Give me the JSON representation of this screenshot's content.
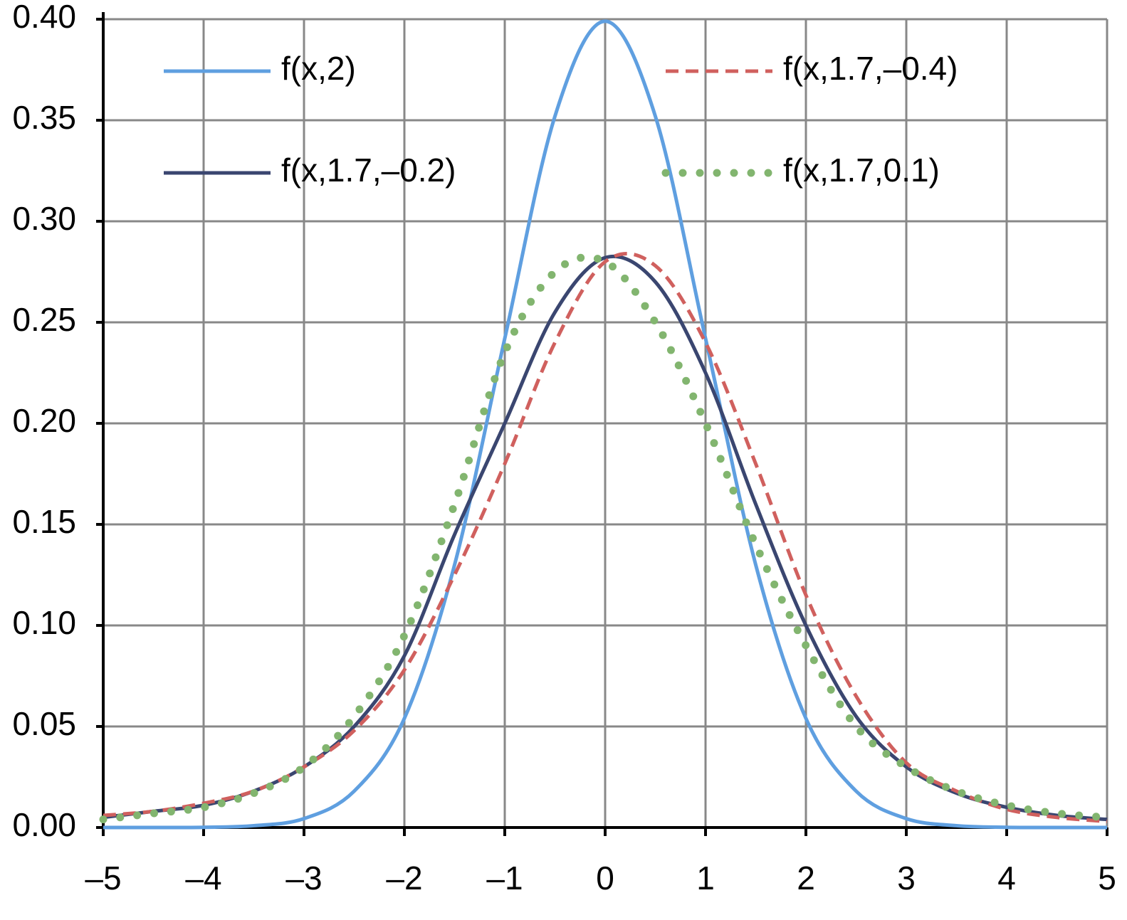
{
  "chart_data": {
    "type": "line",
    "x": [
      -5,
      -4.5,
      -4,
      -3.5,
      -3,
      -2.5,
      -2,
      -1.5,
      -1,
      -0.5,
      0,
      0.5,
      1,
      1.5,
      2,
      2.5,
      3,
      3.5,
      4,
      4.5,
      5
    ],
    "series": [
      {
        "name": "f(x,2)",
        "color": "#5f9fe0",
        "style": "solid",
        "values": [
          0,
          0,
          0.0001,
          0.0009,
          0.0044,
          0.018,
          0.054,
          0.13,
          0.242,
          0.352,
          0.399,
          0.352,
          0.242,
          0.13,
          0.054,
          0.018,
          0.0044,
          0.0009,
          0.0001,
          0,
          0
        ]
      },
      {
        "name": "f(x,1.7,–0.2)",
        "color": "#3a4670",
        "style": "solid",
        "values": [
          0.005,
          0.008,
          0.011,
          0.018,
          0.03,
          0.05,
          0.085,
          0.145,
          0.2,
          0.255,
          0.282,
          0.27,
          0.225,
          0.16,
          0.1,
          0.055,
          0.03,
          0.017,
          0.01,
          0.006,
          0.004
        ]
      },
      {
        "name": "f(x,1.7,–0.4)",
        "color": "#d0605e",
        "style": "dashed",
        "values": [
          0.006,
          0.008,
          0.012,
          0.018,
          0.03,
          0.048,
          0.078,
          0.125,
          0.18,
          0.24,
          0.28,
          0.278,
          0.24,
          0.18,
          0.115,
          0.065,
          0.032,
          0.018,
          0.009,
          0.005,
          0.003
        ]
      },
      {
        "name": "f(x,1.7,0.1)",
        "color": "#82b56f",
        "style": "dotted",
        "values": [
          0.004,
          0.007,
          0.01,
          0.017,
          0.03,
          0.055,
          0.095,
          0.16,
          0.235,
          0.275,
          0.28,
          0.25,
          0.2,
          0.14,
          0.09,
          0.05,
          0.03,
          0.018,
          0.011,
          0.007,
          0.005
        ]
      }
    ],
    "xlim": [
      -5,
      5
    ],
    "xticks": [
      {
        "value": -5,
        "label": "–5"
      },
      {
        "value": -4,
        "label": "–4"
      },
      {
        "value": -3,
        "label": "–3"
      },
      {
        "value": -2,
        "label": "–2"
      },
      {
        "value": -1,
        "label": "–1"
      },
      0,
      1,
      2,
      3,
      4,
      5
    ],
    "ylim": [
      0,
      0.4
    ],
    "yticks": [
      {
        "value": 0,
        "label": "0.00"
      },
      {
        "value": 0.05,
        "label": "0.05"
      },
      {
        "value": 0.1,
        "label": "0.10"
      },
      {
        "value": 0.15,
        "label": "0.15"
      },
      {
        "value": 0.2,
        "label": "0.20"
      },
      {
        "value": 0.25,
        "label": "0.25"
      },
      {
        "value": 0.3,
        "label": "0.30"
      },
      {
        "value": 0.35,
        "label": "0.35"
      },
      {
        "value": 0.4,
        "label": "0.40"
      }
    ],
    "grid": true,
    "legend": "top"
  }
}
